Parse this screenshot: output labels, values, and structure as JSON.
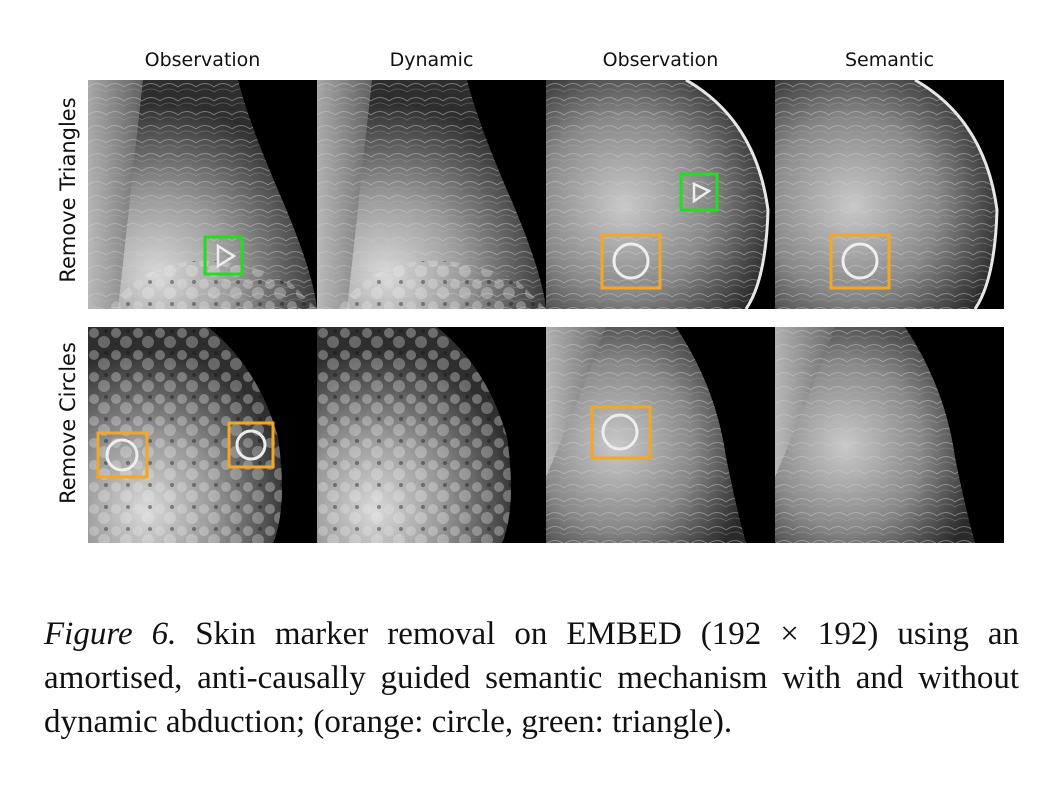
{
  "columns": [
    "Observation",
    "Dynamic",
    "Observation",
    "Semantic"
  ],
  "rows": [
    "Remove Triangles",
    "Remove Circles"
  ],
  "caption": {
    "label": "Figure 6.",
    "text": " Skin marker removal on EMBED (192 × 192) using an amortised, anti-causally guided semantic mechanism with and without dynamic abduction; (orange: circle, green: triangle)."
  },
  "colors": {
    "circle_marker": "#f5a623",
    "triangle_marker": "#22dd22"
  }
}
